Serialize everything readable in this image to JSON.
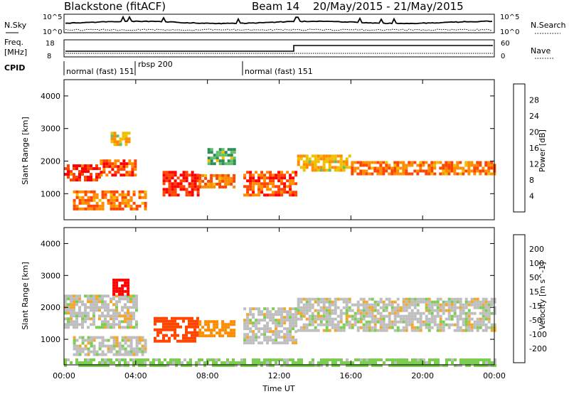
{
  "header": {
    "radar_name": "Blackstone (fitACF)",
    "beam_label": "Beam 14",
    "date_range": "20/May/2015 - 21/May/2015"
  },
  "noise_panel": {
    "left_label": "N.Sky",
    "right_label": "N.Search",
    "left_ticks": [
      "10^5",
      "10^0"
    ],
    "right_ticks": [
      "10^5",
      "10^0"
    ]
  },
  "freq_panel": {
    "left_label_1": "Freq.",
    "left_label_2": "[MHz]",
    "right_label": "Nave",
    "left_ticks": [
      "18",
      "8"
    ],
    "right_ticks": [
      "60",
      "0"
    ]
  },
  "cpid_panel": {
    "label": "CPID",
    "modes": [
      {
        "name": "normal (fast) 151",
        "start_hour": 0
      },
      {
        "name": "rbsp 200",
        "start_hour": 4
      },
      {
        "name": "normal (fast) 151",
        "start_hour": 10
      }
    ]
  },
  "colors": {
    "power_scale": [
      "#0000ff",
      "#1c5aa8",
      "#2e8b57",
      "#5fbf6a",
      "#f0c000",
      "#ff8c00",
      "#ff4500",
      "#ff0000"
    ],
    "velocity_scale": [
      "#ff0000",
      "#ff4500",
      "#ff8c00",
      "#f0a830",
      "#bebebe",
      "#bebebe",
      "#7ccd52",
      "#2e8b57",
      "#3a7a6a",
      "#1c3cc8"
    ]
  },
  "chart_data": [
    {
      "type": "heatmap",
      "title": "Power",
      "xlabel": "Time UT",
      "ylabel": "Slant Range [km]",
      "xlim": [
        0,
        24
      ],
      "ylim": [
        200,
        4500
      ],
      "x_ticks": [
        "00:00",
        "04:00",
        "08:00",
        "12:00",
        "16:00",
        "20:00",
        "00:00"
      ],
      "y_ticks": [
        "1000",
        "2000",
        "3000",
        "4000"
      ],
      "colorbar_label": "Power [dB]",
      "colorbar_ticks": [
        "4",
        "8",
        "12",
        "16",
        "20",
        "24",
        "28"
      ],
      "colorbar_range": [
        0,
        30
      ],
      "bands": [
        {
          "t0": 0.0,
          "t1": 2.0,
          "r0": 1450,
          "r1": 1900,
          "level": 26
        },
        {
          "t0": 2.0,
          "t1": 4.0,
          "r0": 1600,
          "r1": 2050,
          "level": 24
        },
        {
          "t0": 0.5,
          "t1": 4.5,
          "r0": 500,
          "r1": 1100,
          "level": 22
        },
        {
          "t0": 2.6,
          "t1": 3.6,
          "r0": 2500,
          "r1": 2900,
          "level": 18
        },
        {
          "t0": 5.5,
          "t1": 7.5,
          "r0": 1000,
          "r1": 1700,
          "level": 27
        },
        {
          "t0": 7.5,
          "t1": 9.5,
          "r0": 1200,
          "r1": 1600,
          "level": 22
        },
        {
          "t0": 8.0,
          "t1": 9.5,
          "r0": 1900,
          "r1": 2400,
          "level": 12
        },
        {
          "t0": 10.0,
          "t1": 13.0,
          "r0": 1000,
          "r1": 1700,
          "level": 24
        },
        {
          "t0": 13.0,
          "t1": 16.0,
          "r0": 1700,
          "r1": 2200,
          "level": 18
        },
        {
          "t0": 16.0,
          "t1": 24.0,
          "r0": 1600,
          "r1": 2000,
          "level": 22
        }
      ]
    },
    {
      "type": "heatmap",
      "title": "Velocity",
      "xlabel": "Time UT",
      "ylabel": "Slant Range [km]",
      "xlim": [
        0,
        24
      ],
      "ylim": [
        200,
        4500
      ],
      "x_ticks": [
        "00:00",
        "04:00",
        "08:00",
        "12:00",
        "16:00",
        "20:00",
        "00:00"
      ],
      "y_ticks": [
        "1000",
        "2000",
        "3000",
        "4000"
      ],
      "colorbar_label": "Velocity [m s^-1]",
      "colorbar_ticks": [
        "200",
        "100",
        "50",
        "15",
        "-15",
        "-50",
        "-100",
        "-200"
      ],
      "colorbar_range": [
        -250,
        250
      ],
      "bands": [
        {
          "t0": 0.0,
          "t1": 4.0,
          "r0": 1400,
          "r1": 2400,
          "level": 0
        },
        {
          "t0": 0.5,
          "t1": 4.5,
          "r0": 500,
          "r1": 1100,
          "level": 0
        },
        {
          "t0": 2.7,
          "t1": 3.5,
          "r0": 2400,
          "r1": 2900,
          "level": -220
        },
        {
          "t0": 5.0,
          "t1": 7.5,
          "r0": 900,
          "r1": 1700,
          "level": -150
        },
        {
          "t0": 7.5,
          "t1": 9.5,
          "r0": 1100,
          "r1": 1600,
          "level": -80
        },
        {
          "t0": 10.0,
          "t1": 13.0,
          "r0": 900,
          "r1": 2000,
          "level": 0
        },
        {
          "t0": 13.0,
          "t1": 24.0,
          "r0": 1300,
          "r1": 2300,
          "level": 0
        },
        {
          "t0": 0.0,
          "t1": 24.0,
          "r0": 200,
          "r1": 400,
          "level": 30
        }
      ]
    }
  ]
}
